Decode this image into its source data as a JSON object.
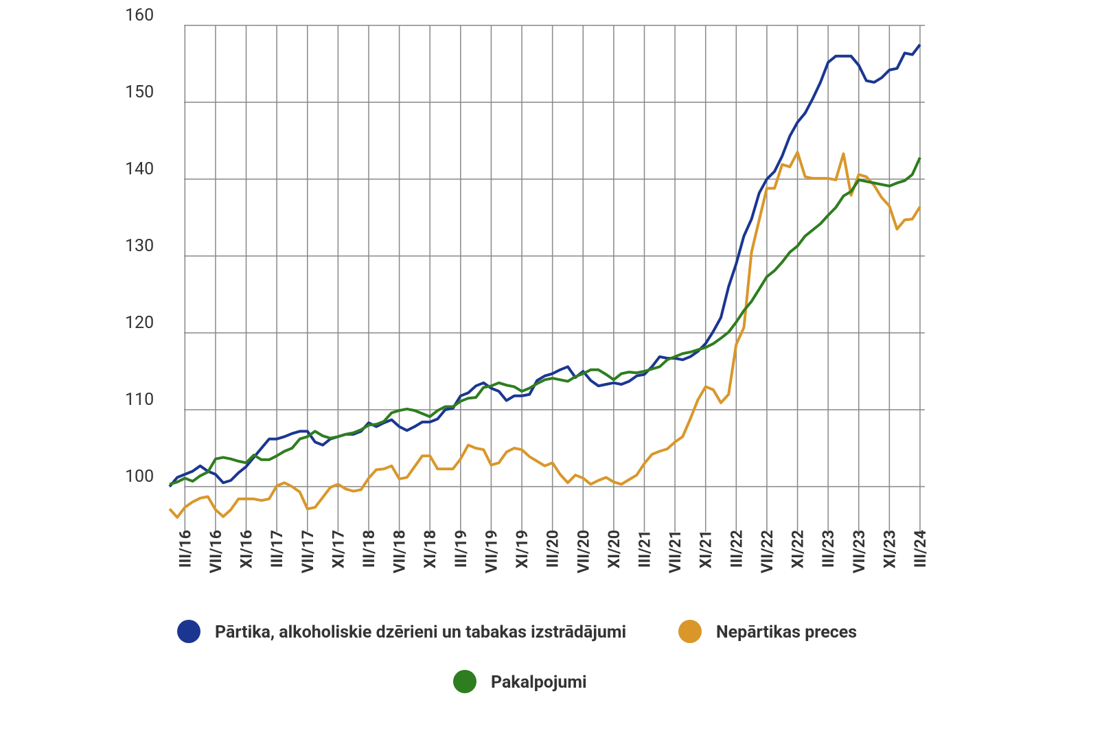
{
  "chart_data": {
    "type": "line",
    "categories": [
      null,
      null,
      "III/16",
      null,
      null,
      null,
      "VII/16",
      null,
      null,
      null,
      "XI/16",
      null,
      null,
      null,
      "III/17",
      null,
      null,
      null,
      "VII/17",
      null,
      null,
      null,
      "XI/17",
      null,
      null,
      null,
      "III/18",
      null,
      null,
      null,
      "VII/18",
      null,
      null,
      null,
      "XI/18",
      null,
      null,
      null,
      "III/19",
      null,
      null,
      null,
      "VII/19",
      null,
      null,
      null,
      "XI/19",
      null,
      null,
      null,
      "III/20",
      null,
      null,
      null,
      "VII/20",
      null,
      null,
      null,
      "XI/20",
      null,
      null,
      null,
      "III/21",
      null,
      null,
      null,
      "VII/21",
      null,
      null,
      null,
      "XI/21",
      null,
      null,
      null,
      "III/22",
      null,
      null,
      null,
      "VII/22",
      null,
      null,
      null,
      "XI/22",
      null,
      null,
      null,
      "III/23",
      null,
      null,
      null,
      "VII/23",
      null,
      null,
      null,
      "XI/23",
      null,
      null,
      null,
      "III/24"
    ],
    "series": [
      {
        "name": "Pārtika, alkoholiskie dzērieni un tabakas izstrādājumi",
        "color": "#1b3691",
        "values": [
          100,
          101.2,
          101.6,
          102,
          102.7,
          102,
          101.6,
          100.5,
          100.8,
          101.8,
          102.6,
          103.8,
          105,
          106.2,
          106.2,
          106.5,
          106.9,
          107.2,
          107.2,
          105.8,
          105.4,
          106.2,
          106.5,
          106.8,
          106.8,
          107.2,
          108.3,
          107.8,
          108.3,
          108.7,
          107.8,
          107.3,
          107.8,
          108.4,
          108.4,
          108.8,
          110,
          110.2,
          111.8,
          112.2,
          113.1,
          113.5,
          112.8,
          112.4,
          111.2,
          111.8,
          111.8,
          112,
          113.8,
          114.4,
          114.7,
          115.2,
          115.6,
          114.2,
          115,
          113.8,
          113.1,
          113.3,
          113.5,
          113.3,
          113.7,
          114.4,
          114.6,
          115.6,
          116.9,
          116.7,
          116.7,
          116.5,
          116.9,
          117.6,
          118.6,
          120.2,
          122,
          126,
          129,
          132.6,
          134.8,
          138.2,
          140,
          141,
          143,
          145.6,
          147.4,
          148.6,
          150.5,
          152.6,
          155.2,
          156,
          156,
          156,
          154.8,
          152.8,
          152.6,
          153.2,
          154.2,
          154.4,
          156.4,
          156.2,
          157.5
        ]
      },
      {
        "name": "Nepārtikas preces",
        "color": "#d9972a",
        "values": [
          97.1,
          96,
          97.3,
          98,
          98.5,
          98.7,
          97,
          96.1,
          97,
          98.4,
          98.4,
          98.4,
          98.2,
          98.4,
          100.1,
          100.5,
          100,
          99.3,
          97.1,
          97.3,
          98.6,
          99.9,
          100.3,
          99.7,
          99.4,
          99.6,
          101.1,
          102.2,
          102.3,
          102.7,
          101,
          101.2,
          102.6,
          104,
          104,
          102.3,
          102.3,
          102.3,
          103.6,
          105.4,
          105,
          104.8,
          102.8,
          103.1,
          104.5,
          105,
          104.8,
          103.9,
          103.3,
          102.7,
          103.1,
          101.6,
          100.5,
          101.5,
          101.1,
          100.3,
          100.8,
          101.2,
          100.6,
          100.3,
          100.9,
          101.5,
          103,
          104.2,
          104.6,
          104.9,
          105.8,
          106.5,
          108.8,
          111.3,
          113,
          112.6,
          110.9,
          112,
          118.5,
          120.7,
          130.5,
          134.7,
          138.8,
          138.8,
          141.9,
          141.6,
          143.5,
          140.3,
          140.1,
          140.1,
          140.1,
          139.9,
          143.3,
          137.9,
          140.6,
          140.3,
          139.2,
          137.6,
          136.5,
          133.5,
          134.7,
          134.8,
          136.4
        ]
      },
      {
        "name": "Pakalpojumi",
        "color": "#2e7d1f",
        "values": [
          100.3,
          100.6,
          101.1,
          100.7,
          101.4,
          101.9,
          103.6,
          103.8,
          103.6,
          103.3,
          103.1,
          104.1,
          103.5,
          103.5,
          104,
          104.6,
          105,
          106.2,
          106.5,
          107.2,
          106.6,
          106.3,
          106.5,
          106.8,
          107,
          107.4,
          108,
          108.1,
          108.5,
          109.6,
          109.9,
          110.1,
          109.9,
          109.5,
          109.1,
          109.9,
          110.4,
          110.4,
          111.1,
          111.5,
          111.6,
          112.9,
          113.1,
          113.5,
          113.2,
          113,
          112.4,
          112.8,
          113.4,
          113.9,
          114.1,
          113.9,
          113.7,
          114.3,
          114.7,
          115.2,
          115.2,
          114.6,
          113.9,
          114.7,
          114.9,
          114.8,
          115,
          115.3,
          115.6,
          116.5,
          116.9,
          117.3,
          117.5,
          117.8,
          118.1,
          118.6,
          119.3,
          120.1,
          121.4,
          122.9,
          124.1,
          125.7,
          127.3,
          128.1,
          129.2,
          130.5,
          131.3,
          132.6,
          133.4,
          134.2,
          135.3,
          136.3,
          137.8,
          138.4,
          139.9,
          139.7,
          139.5,
          139.3,
          139.1,
          139.5,
          139.8,
          140.6,
          142.8
        ]
      }
    ],
    "ylim": [
      95,
      160
    ],
    "yticks": [
      100,
      110,
      120,
      130,
      140,
      150,
      160
    ],
    "grid": true,
    "legend": "bottom"
  }
}
